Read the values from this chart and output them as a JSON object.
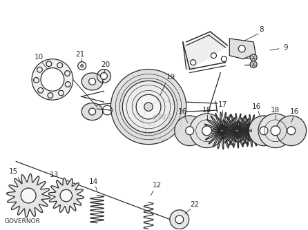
{
  "bg_color": "#ffffff",
  "line_color": "#2a2a2a",
  "label_color": "#2a2a2a",
  "watermark_color": "#bbbbbb",
  "fig_width": 4.46,
  "fig_height": 3.34,
  "dpi": 100,
  "title": "GOVERNOR"
}
